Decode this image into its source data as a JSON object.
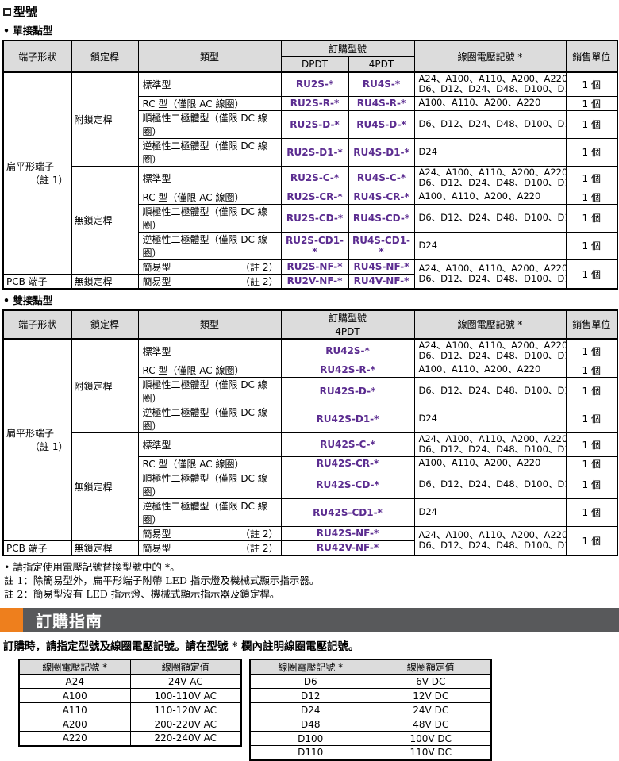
{
  "title": "型號",
  "sections": {
    "single": "• 單接點型",
    "double": "• 雙接點型"
  },
  "headers": {
    "terminal": "端子形狀",
    "lever": "鎖定桿",
    "type": "類型",
    "order_model": "訂購型號",
    "dpdt": "DPDT",
    "pdt4": "4PDT",
    "coil_voltage": "線圈電壓記號 *",
    "sales_unit": "銷售單位"
  },
  "group_cells": {
    "terminal": [
      {
        "at": 0,
        "span": 9,
        "label": "扁平形端子",
        "note": "（註 1）"
      },
      {
        "at": 9,
        "span": 1,
        "label": "PCB 端子"
      }
    ],
    "lever": [
      {
        "at": 0,
        "span": 4,
        "label": "附鎖定桿"
      },
      {
        "at": 4,
        "span": 5,
        "label": "無鎖定桿"
      },
      {
        "at": 9,
        "span": 1,
        "label": "無鎖定桿"
      }
    ]
  },
  "single_table": {
    "rows": [
      {
        "type": "標準型",
        "dpdt": "RU2S-*",
        "pdt4": "RU4S-*",
        "volt": [
          "A24、A100、A110、A200、A220",
          "D6、D12、D24、D48、D100、D110"
        ],
        "unit": "1 個"
      },
      {
        "type": "RC 型（僅限 AC 線圈）",
        "dpdt": "RU2S-R-*",
        "pdt4": "RU4S-R-*",
        "volt": [
          "A100、A110、A200、A220"
        ],
        "unit": "1 個"
      },
      {
        "type": "順極性二極體型（僅限 DC 線圈）",
        "dpdt": "RU2S-D-*",
        "pdt4": "RU4S-D-*",
        "volt": [
          "D6、D12、D24、D48、D100、D110"
        ],
        "unit": "1 個"
      },
      {
        "type": "逆極性二極體型（僅限 DC 線圈）",
        "dpdt": "RU2S-D1-*",
        "pdt4": "RU4S-D1-*",
        "volt": [
          "D24"
        ],
        "unit": "1 個"
      },
      {
        "type": "標準型",
        "dpdt": "RU2S-C-*",
        "pdt4": "RU4S-C-*",
        "volt": [
          "A24、A100、A110、A200、A220",
          "D6、D12、D24、D48、D100、D110"
        ],
        "unit": "1 個"
      },
      {
        "type": "RC 型（僅限 AC 線圈）",
        "dpdt": "RU2S-CR-*",
        "pdt4": "RU4S-CR-*",
        "volt": [
          "A100、A110、A200、A220"
        ],
        "unit": "1 個"
      },
      {
        "type": "順極性二極體型（僅限 DC 線圈）",
        "dpdt": "RU2S-CD-*",
        "pdt4": "RU4S-CD-*",
        "volt": [
          "D6、D12、D24、D48、D100、D110"
        ],
        "unit": "1 個"
      },
      {
        "type": "逆極性二極體型（僅限 DC 線圈）",
        "dpdt": "RU2S-CD1-*",
        "pdt4": "RU4S-CD1-*",
        "volt": [
          "D24"
        ],
        "unit": "1 個"
      },
      {
        "type": "簡易型",
        "note": "（註 2）",
        "dpdt": "RU2S-NF-*",
        "pdt4": "RU4S-NF-*",
        "volt": [
          "A24、A100、A110、A200、A220",
          "D6、D12、D24、D48、D100、D110"
        ],
        "vspan": 2,
        "unit": "1 個",
        "uspan": 2
      },
      {
        "type": "簡易型",
        "note": "（註 2）",
        "dpdt": "RU2V-NF-*",
        "pdt4": "RU4V-NF-*"
      }
    ]
  },
  "double_table": {
    "rows": [
      {
        "type": "標準型",
        "model": "RU42S-*",
        "volt": [
          "A24、A100、A110、A200、A220",
          "D6、D12、D24、D48、D100、D110"
        ],
        "unit": "1 個"
      },
      {
        "type": "RC 型（僅限 AC 線圈）",
        "model": "RU42S-R-*",
        "volt": [
          "A100、A110、A200、A220"
        ],
        "unit": "1 個"
      },
      {
        "type": "順極性二極體型（僅限 DC 線圈）",
        "model": "RU42S-D-*",
        "volt": [
          "D6、D12、D24、D48、D100、D110"
        ],
        "unit": "1 個"
      },
      {
        "type": "逆極性二極體型（僅限 DC 線圈）",
        "model": "RU42S-D1-*",
        "volt": [
          "D24"
        ],
        "unit": "1 個"
      },
      {
        "type": "標準型",
        "model": "RU42S-C-*",
        "volt": [
          "A24、A100、A110、A200、A220",
          "D6、D12、D24、D48、D100、D110"
        ],
        "unit": "1 個"
      },
      {
        "type": "RC 型（僅限 AC 線圈）",
        "model": "RU42S-CR-*",
        "volt": [
          "A100、A110、A200、A220"
        ],
        "unit": "1 個"
      },
      {
        "type": "順極性二極體型（僅限 DC 線圈）",
        "model": "RU42S-CD-*",
        "volt": [
          "D6、D12、D24、D48、D100、D110"
        ],
        "unit": "1 個"
      },
      {
        "type": "逆極性二極體型（僅限 DC 線圈）",
        "model": "RU42S-CD1-*",
        "volt": [
          "D24"
        ],
        "unit": "1 個"
      },
      {
        "type": "簡易型",
        "note": "（註 2）",
        "model": "RU42S-NF-*",
        "volt": [
          "A24、A100、A110、A200、A220",
          "D6、D12、D24、D48、D100、D110"
        ],
        "vspan": 2,
        "unit": "1 個",
        "uspan": 2
      },
      {
        "type": "簡易型",
        "note": "（註 2）",
        "model": "RU42V-NF-*"
      }
    ]
  },
  "footnotes": [
    "• 請指定使用電壓記號替換型號中的 *。",
    "註 1：除簡易型外，扁平形端子附帶 LED 指示燈及機械式顯示指示器。",
    "註 2：簡易型沒有 LED 指示燈、機械式顯示指示器及鎖定桿。"
  ],
  "order_guide": {
    "heading": "訂購指南",
    "intro": "訂購時，請指定型號及線圈電壓記號。請在型號 * 欄內註明線圈電壓記號。",
    "voltage_tables": [
      {
        "headers": [
          "線圈電壓記號 *",
          "線圈額定值"
        ],
        "rows": [
          [
            "A24",
            "24V AC"
          ],
          [
            "A100",
            "100-110V AC"
          ],
          [
            "A110",
            "110-120V AC"
          ],
          [
            "A200",
            "200-220V AC"
          ],
          [
            "A220",
            "220-240V AC"
          ]
        ]
      },
      {
        "headers": [
          "線圈電壓記號 *",
          "線圈額定值"
        ],
        "rows": [
          [
            "D6",
            "6V DC"
          ],
          [
            "D12",
            "12V DC"
          ],
          [
            "D24",
            "24V DC"
          ],
          [
            "D48",
            "48V DC"
          ],
          [
            "D100",
            "100V DC"
          ],
          [
            "D110",
            "110V DC"
          ]
        ]
      }
    ]
  },
  "colors": {
    "model_purple": "#5b2c90",
    "accent_orange": "#ee7f1d",
    "bar_gray": "#58595b",
    "table_header_bg": "#dcdcdc"
  }
}
